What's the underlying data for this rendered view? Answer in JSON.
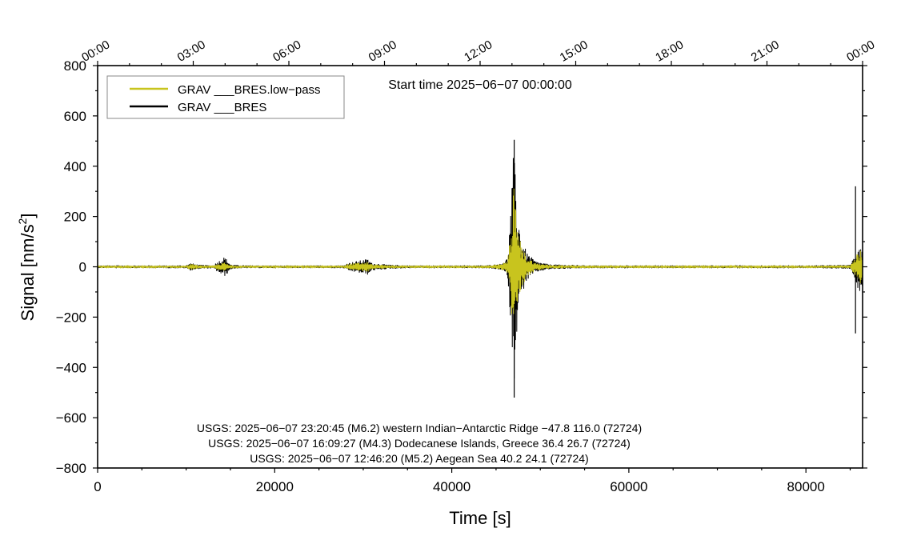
{
  "chart_data": {
    "type": "line",
    "title": "",
    "start_time_text": "Start time 2025−06−07 00:00:00",
    "xlabel": "Time [s]",
    "ylabel_main": "Signal [nm/s",
    "ylabel_sup": "2",
    "ylabel_end": "]",
    "xlim": [
      0,
      86400
    ],
    "ylim": [
      -800,
      800
    ],
    "x_ticks": [
      0,
      20000,
      40000,
      60000,
      80000
    ],
    "x_tick_labels": [
      "0",
      "20000",
      "40000",
      "60000",
      "80000"
    ],
    "y_ticks": [
      -800,
      -600,
      -400,
      -200,
      0,
      200,
      400,
      600,
      800
    ],
    "y_tick_labels": [
      "−800",
      "−600",
      "−400",
      "−200",
      "0",
      "200",
      "400",
      "600",
      "800"
    ],
    "top_ticks": [
      0,
      10800,
      21600,
      32400,
      43200,
      54000,
      64800,
      75600,
      86400
    ],
    "top_tick_labels": [
      "00:00",
      "03:00",
      "06:00",
      "09:00",
      "12:00",
      "15:00",
      "18:00",
      "21:00",
      "00:00"
    ],
    "legend_position": "top-left",
    "grid": false,
    "series": [
      {
        "name": "GRAV ___BRES.low−pass",
        "color": "#c8c41e",
        "envelope": [
          [
            0,
            4
          ],
          [
            3000,
            4
          ],
          [
            6000,
            4
          ],
          [
            10000,
            5
          ],
          [
            10500,
            12
          ],
          [
            11500,
            6
          ],
          [
            13000,
            5
          ],
          [
            14300,
            18
          ],
          [
            14800,
            8
          ],
          [
            16000,
            5
          ],
          [
            20000,
            4
          ],
          [
            24000,
            4
          ],
          [
            27800,
            5
          ],
          [
            28200,
            12
          ],
          [
            30500,
            20
          ],
          [
            31000,
            10
          ],
          [
            33000,
            6
          ],
          [
            36000,
            4
          ],
          [
            40000,
            4
          ],
          [
            44000,
            5
          ],
          [
            45500,
            10
          ],
          [
            46300,
            25
          ],
          [
            46700,
            160
          ],
          [
            47000,
            330
          ],
          [
            47300,
            200
          ],
          [
            47800,
            90
          ],
          [
            48500,
            40
          ],
          [
            49500,
            15
          ],
          [
            51000,
            8
          ],
          [
            55000,
            5
          ],
          [
            60000,
            4
          ],
          [
            70000,
            4
          ],
          [
            80000,
            4
          ],
          [
            85000,
            6
          ],
          [
            85500,
            30
          ],
          [
            86000,
            70
          ],
          [
            86400,
            60
          ]
        ]
      },
      {
        "name": "GRAV ___BRES",
        "color": "#000000",
        "envelope": [
          [
            0,
            5
          ],
          [
            3000,
            5
          ],
          [
            6000,
            5
          ],
          [
            10000,
            6
          ],
          [
            10500,
            15
          ],
          [
            11500,
            8
          ],
          [
            13000,
            6
          ],
          [
            14300,
            40
          ],
          [
            14600,
            30
          ],
          [
            15000,
            10
          ],
          [
            16000,
            6
          ],
          [
            20000,
            5
          ],
          [
            24000,
            5
          ],
          [
            27800,
            6
          ],
          [
            28200,
            15
          ],
          [
            30500,
            32
          ],
          [
            31000,
            15
          ],
          [
            33000,
            8
          ],
          [
            36000,
            5
          ],
          [
            40000,
            5
          ],
          [
            44000,
            6
          ],
          [
            45500,
            12
          ],
          [
            46300,
            35
          ],
          [
            46700,
            250
          ],
          [
            47000,
            480
          ],
          [
            47300,
            280
          ],
          [
            47800,
            120
          ],
          [
            48500,
            55
          ],
          [
            49500,
            22
          ],
          [
            51000,
            10
          ],
          [
            55000,
            6
          ],
          [
            60000,
            5
          ],
          [
            70000,
            5
          ],
          [
            80000,
            5
          ],
          [
            85000,
            8
          ],
          [
            85500,
            45
          ],
          [
            86000,
            100
          ],
          [
            86400,
            80
          ]
        ],
        "spikes": [
          [
            47050,
            505,
            -520
          ],
          [
            85600,
            320,
            -265
          ]
        ]
      }
    ],
    "annotations": [
      "USGS: 2025−06−07 23:20:45 (M6.2) western Indian−Antarctic Ridge −47.8 116.0 (72724)",
      "USGS: 2025−06−07 16:09:27 (M4.3) Dodecanese Islands, Greece 36.4 26.7 (72724)",
      "USGS: 2025−06−07 12:46:20 (M5.2) Aegean Sea 40.2 24.1 (72724)"
    ]
  }
}
